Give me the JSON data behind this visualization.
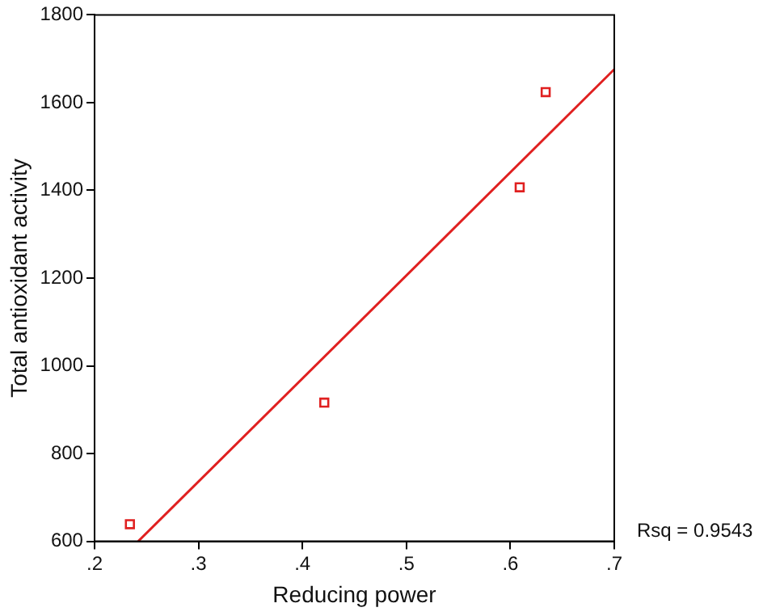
{
  "chart_data": {
    "type": "scatter",
    "xlabel": "Reducing power",
    "ylabel": "Total antioxidant activity",
    "xlim": [
      0.2,
      0.7
    ],
    "ylim": [
      600,
      1800
    ],
    "xticks": [
      {
        "value": 0.2,
        "label": ".2"
      },
      {
        "value": 0.3,
        "label": ".3"
      },
      {
        "value": 0.4,
        "label": ".4"
      },
      {
        "value": 0.5,
        "label": ".5"
      },
      {
        "value": 0.6,
        "label": ".6"
      },
      {
        "value": 0.7,
        "label": ".7"
      }
    ],
    "yticks": [
      600,
      800,
      1000,
      1200,
      1400,
      1600,
      1800
    ],
    "grid": false,
    "legend": false,
    "series": [
      {
        "color": "#e02020",
        "marker": "square",
        "x": [
          0.234,
          0.421,
          0.609,
          0.634
        ],
        "values": [
          639,
          916,
          1407,
          1624
        ]
      },
      {
        "type": "line",
        "color": "#e02020",
        "marker": "none",
        "line_style": "solid",
        "x": [
          0.242,
          0.7
        ],
        "values": [
          600,
          1676
        ]
      }
    ],
    "annotations": [
      "Rsq = 0.9543"
    ]
  }
}
